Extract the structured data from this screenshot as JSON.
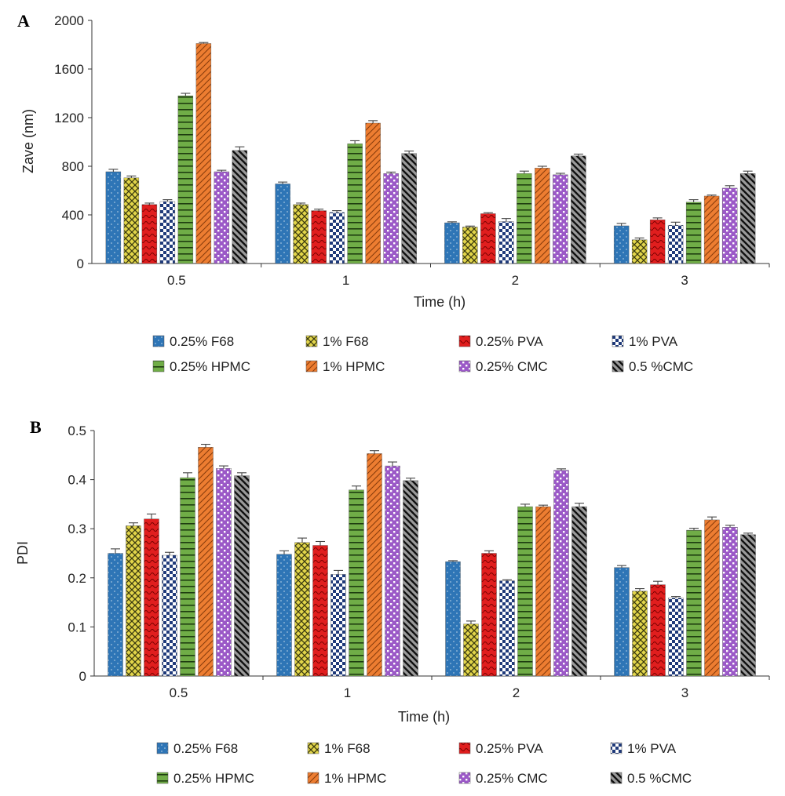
{
  "chart_data": [
    {
      "panel": "A",
      "type": "bar",
      "xlabel": "Time (h)",
      "ylabel": "Zave (nm)",
      "categories": [
        "0.5",
        "1",
        "2",
        "3"
      ],
      "ylim": [
        0,
        2000
      ],
      "yticks": [
        0,
        400,
        800,
        1200,
        1600,
        2000
      ],
      "legend_position": "bottom",
      "grid": false,
      "series": [
        {
          "name": "0.25% F68",
          "values": [
            755,
            655,
            335,
            310
          ],
          "errors": [
            20,
            15,
            8,
            20
          ],
          "color": "#2e75b6",
          "pattern": "dots"
        },
        {
          "name": "1% F68",
          "values": [
            705,
            485,
            300,
            195
          ],
          "errors": [
            15,
            12,
            8,
            15
          ],
          "color": "#b7a51c",
          "pattern": "crosshatch"
        },
        {
          "name": "0.25% PVA",
          "values": [
            485,
            435,
            410,
            360
          ],
          "errors": [
            12,
            12,
            8,
            15
          ],
          "color": "#e01e1e",
          "pattern": "waves"
        },
        {
          "name": "1% PVA",
          "values": [
            510,
            420,
            345,
            315
          ],
          "errors": [
            15,
            15,
            25,
            25
          ],
          "color": "#1f3a7a",
          "pattern": "checker"
        },
        {
          "name": "0.25% HPMC",
          "values": [
            1380,
            985,
            740,
            505
          ],
          "errors": [
            20,
            25,
            20,
            20
          ],
          "color": "#70ad47",
          "pattern": "hlines"
        },
        {
          "name": "1% HPMC",
          "values": [
            1810,
            1155,
            785,
            555
          ],
          "errors": [
            8,
            20,
            15,
            8
          ],
          "color": "#ed7d31",
          "pattern": "diag"
        },
        {
          "name": "0.25% CMC",
          "values": [
            755,
            740,
            730,
            620
          ],
          "errors": [
            12,
            12,
            12,
            20
          ],
          "color": "#9b59c7",
          "pattern": "dots-white"
        },
        {
          "name": "0.5 %CMC",
          "values": [
            930,
            905,
            885,
            740
          ],
          "errors": [
            30,
            20,
            15,
            20
          ],
          "color": "#7f7f7f",
          "pattern": "bdiag"
        }
      ]
    },
    {
      "panel": "B",
      "type": "bar",
      "xlabel": "Time (h)",
      "ylabel": "PDI",
      "categories": [
        "0.5",
        "1",
        "2",
        "3"
      ],
      "ylim": [
        0,
        0.5
      ],
      "yticks": [
        0,
        0.1,
        0.2,
        0.3,
        0.4,
        0.5
      ],
      "legend_position": "bottom",
      "grid": false,
      "series": [
        {
          "name": "0.25% F68",
          "values": [
            0.25,
            0.248,
            0.233,
            0.221
          ],
          "errors": [
            0.009,
            0.007,
            0.002,
            0.004
          ],
          "color": "#2e75b6",
          "pattern": "dots"
        },
        {
          "name": "1% F68",
          "values": [
            0.306,
            0.272,
            0.106,
            0.173
          ],
          "errors": [
            0.006,
            0.009,
            0.006,
            0.005
          ],
          "color": "#b7a51c",
          "pattern": "crosshatch"
        },
        {
          "name": "0.25% PVA",
          "values": [
            0.32,
            0.266,
            0.25,
            0.186
          ],
          "errors": [
            0.01,
            0.008,
            0.005,
            0.007
          ],
          "color": "#e01e1e",
          "pattern": "waves"
        },
        {
          "name": "1% PVA",
          "values": [
            0.246,
            0.207,
            0.194,
            0.159
          ],
          "errors": [
            0.006,
            0.008,
            0.002,
            0.003
          ],
          "color": "#1f3a7a",
          "pattern": "checker"
        },
        {
          "name": "0.25% HPMC",
          "values": [
            0.404,
            0.379,
            0.345,
            0.297
          ],
          "errors": [
            0.01,
            0.008,
            0.005,
            0.004
          ],
          "color": "#70ad47",
          "pattern": "hlines"
        },
        {
          "name": "1% HPMC",
          "values": [
            0.466,
            0.453,
            0.345,
            0.318
          ],
          "errors": [
            0.006,
            0.006,
            0.003,
            0.006
          ],
          "color": "#ed7d31",
          "pattern": "diag"
        },
        {
          "name": "0.25% CMC",
          "values": [
            0.423,
            0.428,
            0.419,
            0.303
          ],
          "errors": [
            0.005,
            0.008,
            0.003,
            0.004
          ],
          "color": "#9b59c7",
          "pattern": "dots-white"
        },
        {
          "name": "0.5 %CMC",
          "values": [
            0.408,
            0.398,
            0.345,
            0.288
          ],
          "errors": [
            0.006,
            0.005,
            0.007,
            0.003
          ],
          "color": "#7f7f7f",
          "pattern": "bdiag"
        }
      ]
    }
  ]
}
